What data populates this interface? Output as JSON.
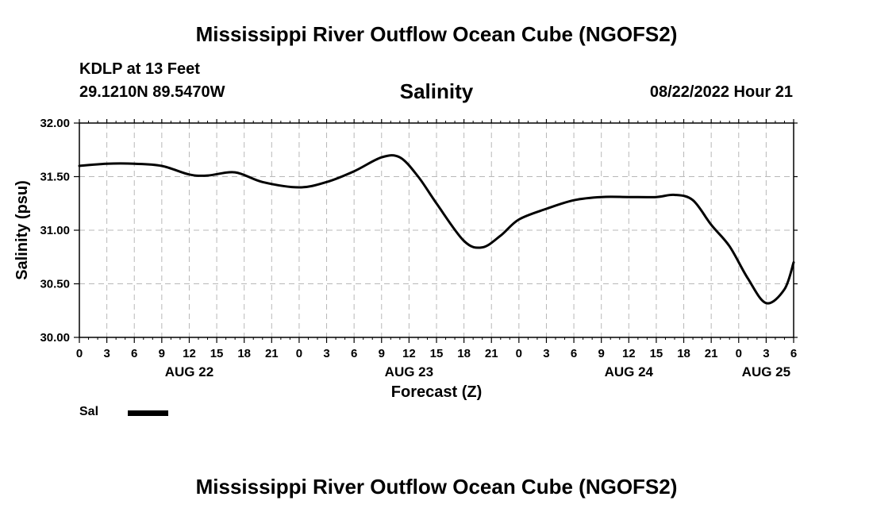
{
  "page": {
    "title": "Mississippi River Outflow Ocean Cube (NGOFS2)",
    "station": "KDLP at 13 Feet",
    "coords": "29.1210N  89.5470W",
    "parameter": "Salinity",
    "timestamp": "08/22/2022 Hour 21",
    "footer_title": "Mississippi River Outflow Ocean Cube (NGOFS2)"
  },
  "chart_data": {
    "type": "line",
    "title": "Salinity",
    "xlabel": "Forecast (Z)",
    "ylabel": "Salinity (psu)",
    "xlim": [
      0,
      78
    ],
    "ylim": [
      30.0,
      32.0
    ],
    "grid": true,
    "legend_placement": "bottom-left",
    "x_ticks": [
      0,
      3,
      6,
      9,
      12,
      15,
      18,
      21,
      24,
      27,
      30,
      33,
      36,
      39,
      42,
      45,
      48,
      51,
      54,
      57,
      60,
      63,
      66,
      69,
      72,
      75,
      78
    ],
    "x_tick_labels": [
      "0",
      "3",
      "6",
      "9",
      "12",
      "15",
      "18",
      "21",
      "0",
      "3",
      "6",
      "9",
      "12",
      "15",
      "18",
      "21",
      "0",
      "3",
      "6",
      "9",
      "12",
      "15",
      "18",
      "21",
      "0",
      "3",
      "6"
    ],
    "y_ticks": [
      30.0,
      30.5,
      31.0,
      31.5,
      32.0
    ],
    "y_tick_labels": [
      "30.00",
      "30.50",
      "31.00",
      "31.50",
      "32.00"
    ],
    "date_labels": [
      {
        "x": 12,
        "label": "AUG 22"
      },
      {
        "x": 36,
        "label": "AUG 23"
      },
      {
        "x": 60,
        "label": "AUG 24"
      },
      {
        "x": 75,
        "label": "AUG 25"
      }
    ],
    "series": [
      {
        "name": "Sal",
        "color": "#000000",
        "x": [
          0,
          3,
          6,
          9,
          12,
          14,
          17,
          20,
          24,
          27,
          30,
          33,
          35,
          37,
          39,
          42,
          44,
          46,
          48,
          51,
          54,
          57,
          60,
          63,
          65,
          67,
          69,
          71,
          73,
          75,
          77,
          78
        ],
        "y": [
          31.6,
          31.62,
          31.62,
          31.6,
          31.52,
          31.51,
          31.54,
          31.45,
          31.4,
          31.45,
          31.55,
          31.68,
          31.68,
          31.5,
          31.25,
          30.9,
          30.84,
          30.95,
          31.1,
          31.2,
          31.28,
          31.31,
          31.31,
          31.31,
          31.33,
          31.28,
          31.05,
          30.85,
          30.55,
          30.32,
          30.45,
          30.7
        ]
      }
    ]
  }
}
